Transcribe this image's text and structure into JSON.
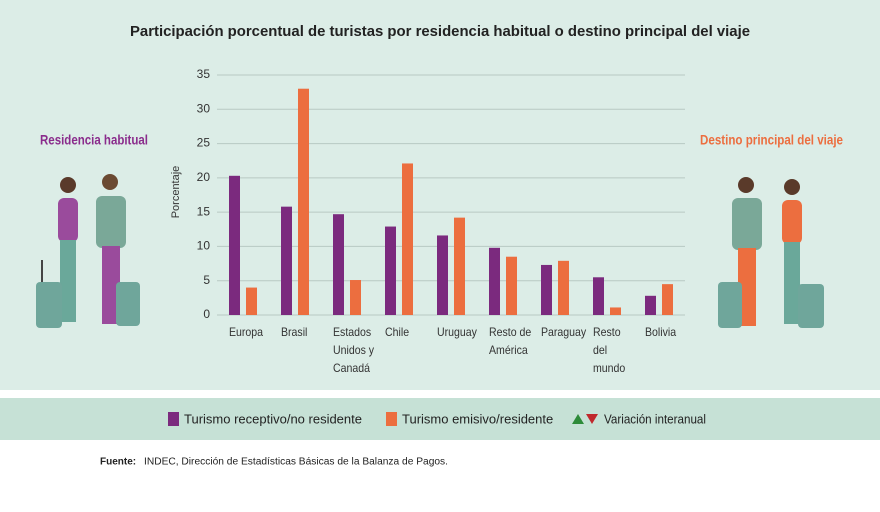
{
  "chart_data": {
    "type": "bar",
    "title": "Participación porcentual de turistas por residencia habitual o destino principal del viaje",
    "left_label": "Residencia habitual",
    "right_label": "Destino principal del viaje",
    "y_label": "Porcentaje",
    "categories": [
      "Europa",
      "Brasil",
      "Estados Unidos y Canadá",
      "Chile",
      "Uruguay",
      "Resto de América",
      "Paraguay",
      "Resto del mundo",
      "Bolivia"
    ],
    "series": [
      {
        "name": "Turismo receptivo/no residente",
        "color": "#7b2a7e",
        "values": [
          20.3,
          15.8,
          14.7,
          12.9,
          11.6,
          9.8,
          7.3,
          5.5,
          2.8
        ]
      },
      {
        "name": "Turismo emisivo/residente",
        "color": "#ec6e3f",
        "values": [
          4.0,
          33.0,
          5.1,
          22.1,
          14.2,
          8.5,
          7.9,
          1.1,
          4.5
        ]
      }
    ],
    "trend_legend": "Variación interanual",
    "ylim": [
      0,
      35
    ],
    "yticks": [
      0,
      5,
      10,
      15,
      20,
      25,
      30,
      35
    ],
    "grid": true,
    "source_label": "Fuente:",
    "source": "INDEC, Dirección de Estadísticas Básicas de la Balanza de Pagos."
  }
}
